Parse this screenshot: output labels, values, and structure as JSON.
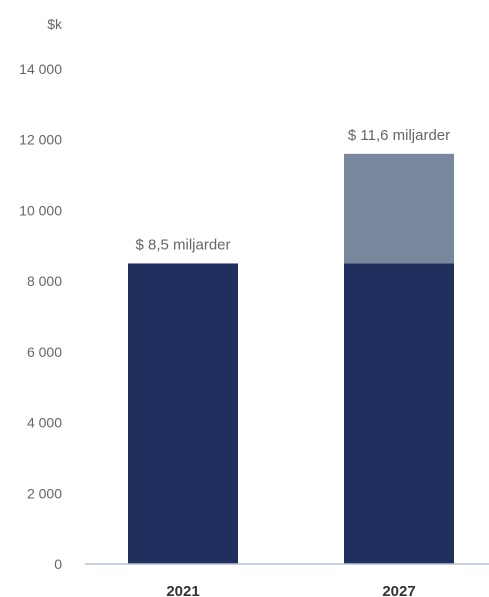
{
  "chart_data": {
    "type": "bar",
    "stacked": true,
    "unit_label": "$k",
    "categories": [
      "2021",
      "2027"
    ],
    "series": [
      {
        "values": [
          8500,
          8500
        ],
        "color": "#20305e"
      },
      {
        "values": [
          0,
          3100
        ],
        "color": "#7a889d"
      }
    ],
    "totals": [
      8500,
      11600
    ],
    "data_labels": [
      "$ 8,5 miljarder",
      "$ 11,6 miljarder"
    ],
    "ylim": [
      0,
      14000
    ],
    "yticks": [
      0,
      2000,
      4000,
      6000,
      8000,
      10000,
      12000,
      14000
    ],
    "ytick_labels": [
      "0",
      "2 000",
      "4 000",
      "6 000",
      "8 000",
      "10 000",
      "12 000",
      "14 000"
    ],
    "grid": false,
    "axis_color": "#b7c3d6"
  }
}
